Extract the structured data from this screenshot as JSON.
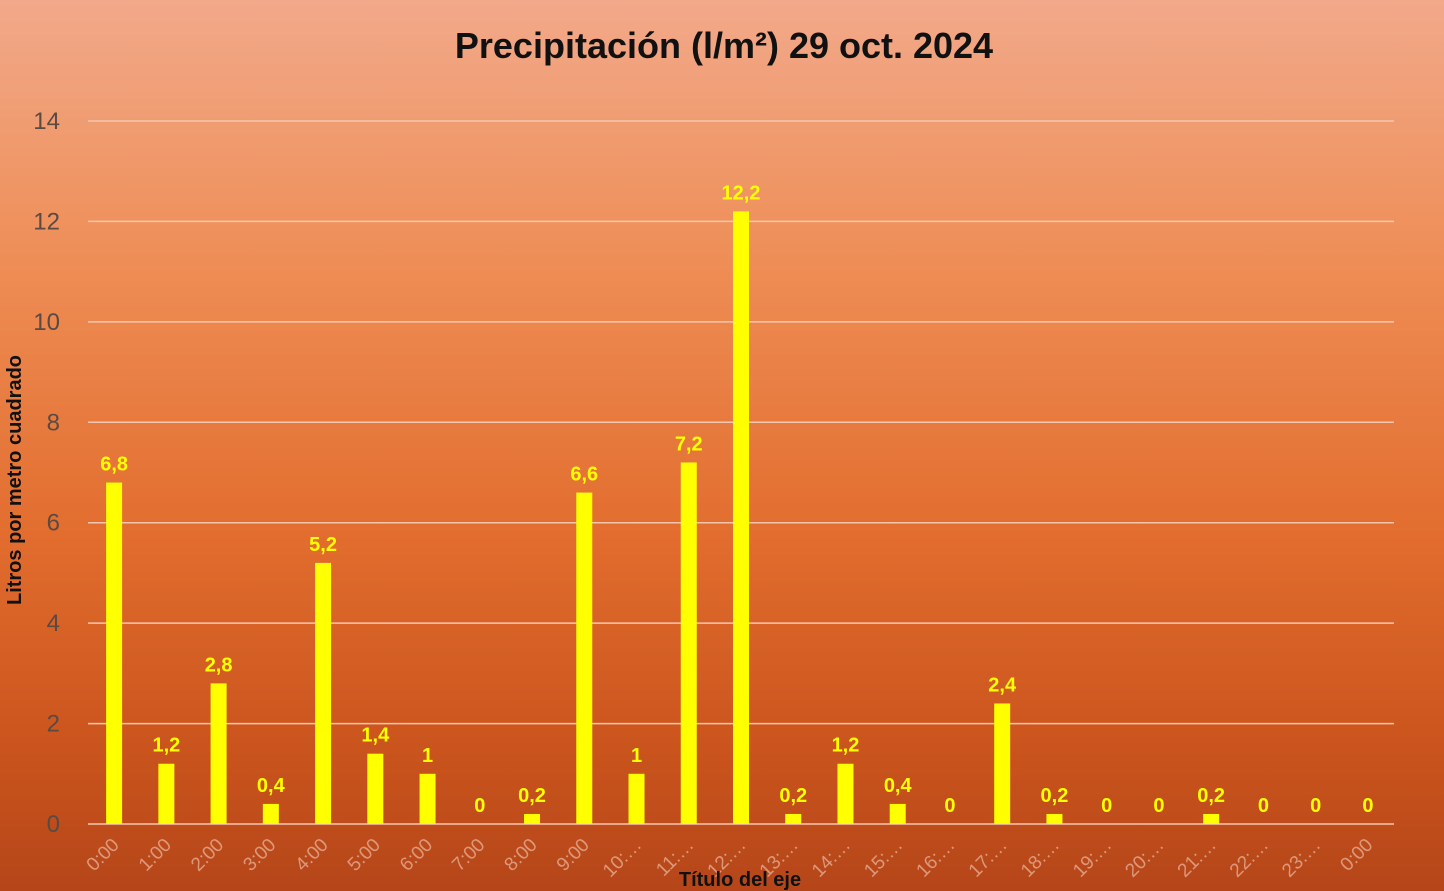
{
  "chart_data": {
    "type": "bar",
    "title": "Precipitación (l/m²) 29 oct. 2024",
    "xlabel": "Título del eje",
    "ylabel": "Litros por metro cuadrado",
    "ylim": [
      0,
      14
    ],
    "yticks": [
      "0",
      "2",
      "4",
      "6",
      "8",
      "10",
      "12",
      "14"
    ],
    "grid": true,
    "categories": [
      "0:00",
      "1:00",
      "2:00",
      "3:00",
      "4:00",
      "5:00",
      "6:00",
      "7:00",
      "8:00",
      "9:00",
      "10:…",
      "11:…",
      "12:…",
      "13:…",
      "14:…",
      "15:…",
      "16:…",
      "17:…",
      "18:…",
      "19:…",
      "20:…",
      "21:…",
      "22:…",
      "23:…",
      "0:00"
    ],
    "values": [
      6.8,
      1.2,
      2.8,
      0.4,
      5.2,
      1.4,
      1,
      0,
      0.2,
      6.6,
      1,
      7.2,
      12.2,
      0.2,
      1.2,
      0.4,
      0,
      2.4,
      0.2,
      0,
      0,
      0.2,
      0,
      0,
      0
    ],
    "data_labels": [
      "6,8",
      "1,2",
      "2,8",
      "0,4",
      "5,2",
      "1,4",
      "1",
      "0",
      "0,2",
      "6,6",
      "1",
      "7,2",
      "12,2",
      "0,2",
      "1,2",
      "0,4",
      "0",
      "2,4",
      "0,2",
      "0",
      "0",
      "0,2",
      "0",
      "0",
      "0"
    ],
    "colors": {
      "bar": "#ffff00",
      "label": "#ffff00",
      "grid": "#f6c7ae",
      "title": "#111111"
    }
  }
}
